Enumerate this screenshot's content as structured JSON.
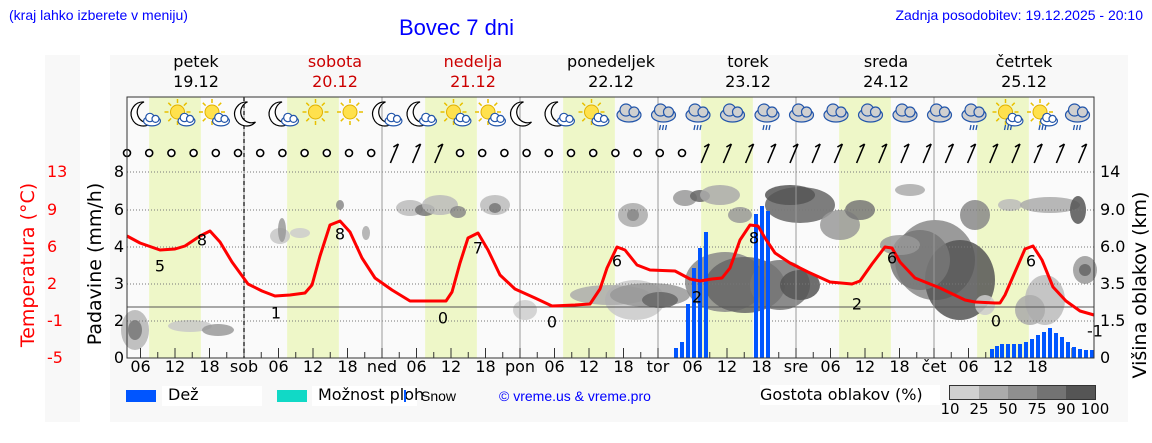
{
  "header": {
    "region_hint": "(kraj lahko izberete v meniju)",
    "title": "Bovec 7 dni",
    "last_update": "Zadnja posodobitev: 19.12.2025 - 20:10"
  },
  "days": [
    {
      "name": "petek",
      "date": "19.12",
      "weekend": false
    },
    {
      "name": "sobota",
      "date": "20.12",
      "weekend": true
    },
    {
      "name": "nedelja",
      "date": "21.12",
      "weekend": true
    },
    {
      "name": "ponedeljek",
      "date": "22.12",
      "weekend": false
    },
    {
      "name": "torek",
      "date": "23.12",
      "weekend": false
    },
    {
      "name": "sreda",
      "date": "24.12",
      "weekend": false
    },
    {
      "name": "četrtek",
      "date": "25.12",
      "weekend": false
    }
  ],
  "axes": {
    "left_temp_label": "Temperatura (°C)",
    "left_temp_ticks": [
      "13",
      "9",
      "6",
      "2",
      "-1",
      "-5"
    ],
    "left_precip_label": "Padavine (mm/h)",
    "left_precip_ticks": [
      "8",
      "6",
      "4",
      "3",
      "2",
      "0"
    ],
    "right_label": "Višina oblakov (km)",
    "right_ticks": [
      "14",
      "9.0",
      "6.0",
      "3.5",
      "1.5",
      "0"
    ],
    "x_ticks": [
      "06",
      "12",
      "18",
      "sob",
      "06",
      "12",
      "18",
      "ned",
      "06",
      "12",
      "18",
      "pon",
      "06",
      "12",
      "18",
      "tor",
      "06",
      "12",
      "18",
      "sre",
      "06",
      "12",
      "18",
      "čet",
      "06",
      "12",
      "18"
    ]
  },
  "legend": {
    "rain": "Dež",
    "showers": "Možnost ploh",
    "snow": "Snow",
    "copyright": "© vreme.us & vreme.pro",
    "cloud_density": "Gostota oblakov (%)",
    "cloud_scale": [
      "10",
      "25",
      "50",
      "75",
      "90",
      "100"
    ]
  },
  "colors": {
    "temperature": "#ff0000",
    "rain": "#0055ff",
    "showers": "#11d9c6",
    "daylight": "#eef7c8",
    "link": "#0000ff",
    "weekend": "#cc0000"
  },
  "temp_labels": [
    {
      "v": "5"
    },
    {
      "v": "8"
    },
    {
      "v": "1"
    },
    {
      "v": "8"
    },
    {
      "v": "0"
    },
    {
      "v": "7"
    },
    {
      "v": "0"
    },
    {
      "v": "6"
    },
    {
      "v": "2"
    },
    {
      "v": "8"
    },
    {
      "v": "2"
    },
    {
      "v": "6"
    },
    {
      "v": "0"
    },
    {
      "v": "6"
    },
    {
      "v": "-1"
    }
  ],
  "chart_data": {
    "type": "line",
    "title": "Bovec 7 dni",
    "xlabel": "",
    "ylabel": "Temperatura (°C) / Padavine (mm/h)",
    "y2label": "Višina oblakov (km)",
    "categories": [
      "19.12 12",
      "19.12 18",
      "20.12 00",
      "20.12 06",
      "20.12 12",
      "20.12 18",
      "21.12 00",
      "21.12 06",
      "21.12 12",
      "21.12 18",
      "22.12 00",
      "22.12 06",
      "22.12 12",
      "22.12 18",
      "23.12 00",
      "23.12 06",
      "23.12 12",
      "23.12 18",
      "24.12 00",
      "24.12 06",
      "24.12 12",
      "24.12 18",
      "25.12 00",
      "25.12 06",
      "25.12 12",
      "25.12 18",
      "26.12 00"
    ],
    "series": [
      {
        "name": "Temperatura (°C)",
        "values": [
          8,
          3,
          2,
          1,
          8,
          3,
          1,
          0,
          7,
          2,
          0,
          0,
          6,
          4,
          3,
          2,
          8,
          5,
          3,
          2,
          6,
          3,
          1,
          0,
          6,
          2,
          -1
        ]
      },
      {
        "name": "Dež (mm/h)",
        "values": [
          0,
          0,
          0,
          0,
          0,
          0,
          0,
          0,
          0,
          0,
          0,
          0,
          0,
          0,
          1.5,
          4.5,
          5.8,
          0,
          0,
          0,
          0,
          0,
          0,
          0.8,
          1.2,
          0.6,
          0.2
        ]
      }
    ],
    "temp_ticks": [
      13,
      9,
      6,
      2,
      -1,
      -5
    ],
    "precip_ticks": [
      8,
      6,
      4,
      3,
      2,
      0
    ],
    "cloud_height_ticks_km": [
      14,
      9.0,
      6.0,
      3.5,
      1.5,
      0
    ],
    "cloud_density_scale_pct": [
      10,
      25,
      50,
      75,
      90,
      100
    ],
    "grid": true,
    "legend_position": "bottom"
  }
}
